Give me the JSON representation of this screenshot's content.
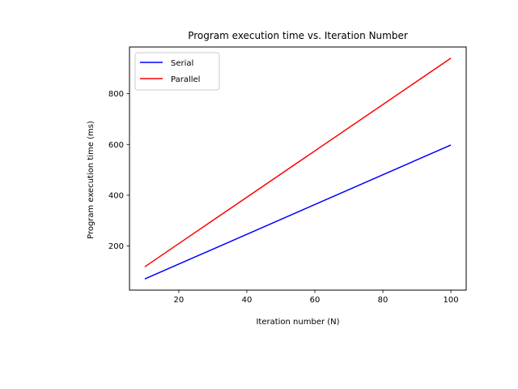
{
  "chart_data": {
    "type": "line",
    "title": "Program execution time vs. Iteration Number",
    "xlabel": "Iteration number (N)",
    "ylabel": "Program execution time (ms)",
    "xlim": [
      5.5,
      104.5
    ],
    "ylim": [
      26,
      984
    ],
    "xticks": [
      20,
      40,
      60,
      80,
      100
    ],
    "yticks": [
      200,
      400,
      600,
      800
    ],
    "grid": false,
    "legend_position": "top-left",
    "series": [
      {
        "name": "Serial",
        "color": "#0000ff",
        "x": [
          10,
          100
        ],
        "y": [
          70,
          598
        ]
      },
      {
        "name": "Parallel",
        "color": "#ff0000",
        "x": [
          10,
          100
        ],
        "y": [
          118,
          940
        ]
      }
    ]
  }
}
